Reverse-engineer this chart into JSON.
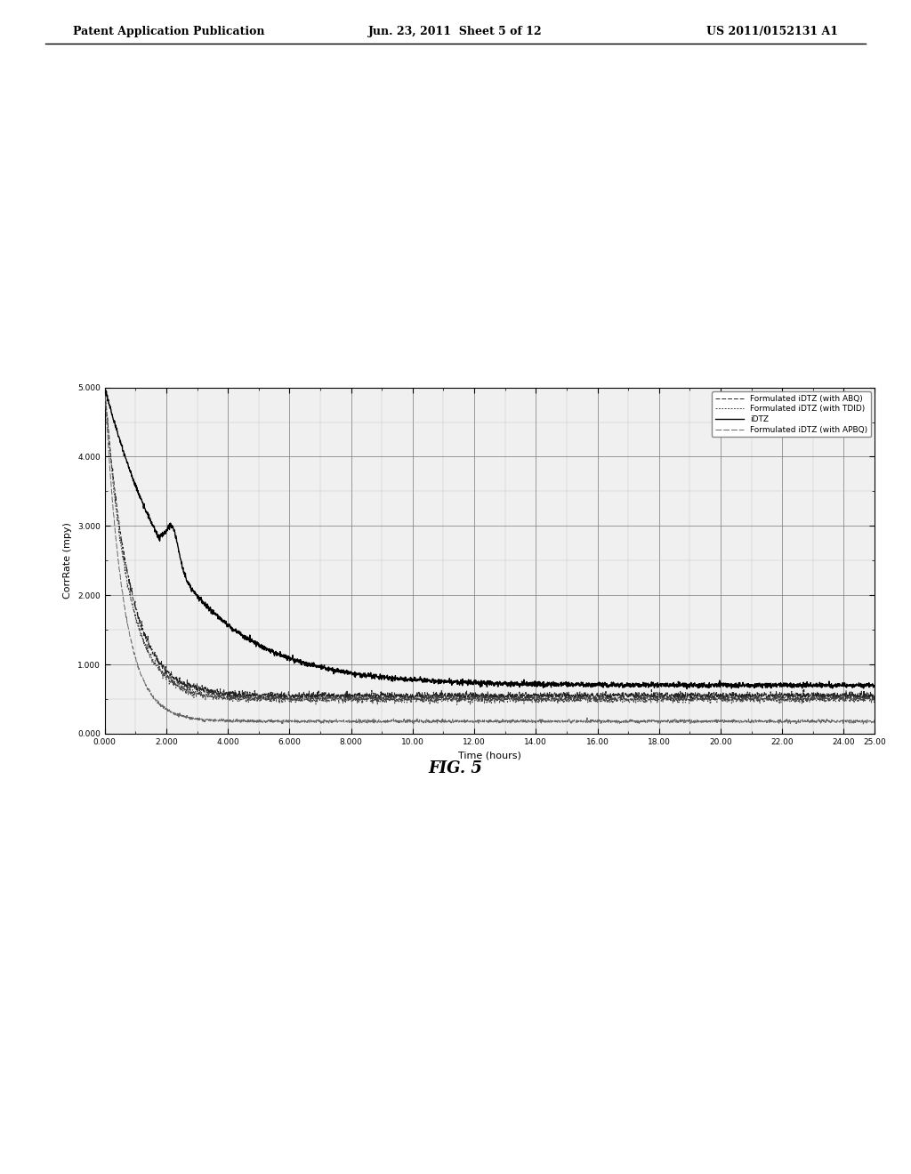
{
  "xlabel": "Time (hours)",
  "ylabel": "CorrRate (mpy)",
  "xlim": [
    0.0,
    25.0
  ],
  "ylim": [
    0.0,
    5.0
  ],
  "xtick_vals": [
    0.0,
    2.0,
    4.0,
    6.0,
    8.0,
    10.0,
    12.0,
    14.0,
    16.0,
    18.0,
    20.0,
    22.0,
    24.0,
    25.0
  ],
  "xtick_labels": [
    "0.000",
    "2.000",
    "4.000",
    "6.000",
    "8.000",
    "10.00",
    "12.00",
    "14.00",
    "16.00",
    "18.00",
    "20.00",
    "22.00",
    "24.00",
    "25.00"
  ],
  "ytick_vals": [
    0.0,
    1.0,
    2.0,
    3.0,
    4.0,
    5.0
  ],
  "ytick_labels": [
    "0.000",
    "1.000",
    "2.000",
    "3.000",
    "4.000",
    "5.000"
  ],
  "legend_entries": [
    "Formulated iDTZ (with ABQ)",
    "Formulated iDTZ (with TDID)",
    "iDTZ",
    "Formulated iDTZ (with APBQ)"
  ],
  "header_left": "Patent Application Publication",
  "header_center": "Jun. 23, 2011  Sheet 5 of 12",
  "header_right": "US 2011/0152131 A1",
  "fig_label": "FIG. 5",
  "background_color": "#ffffff",
  "plot_bg": "#f0f0f0",
  "major_grid_color": "#777777",
  "minor_grid_color": "#bbbbbb"
}
